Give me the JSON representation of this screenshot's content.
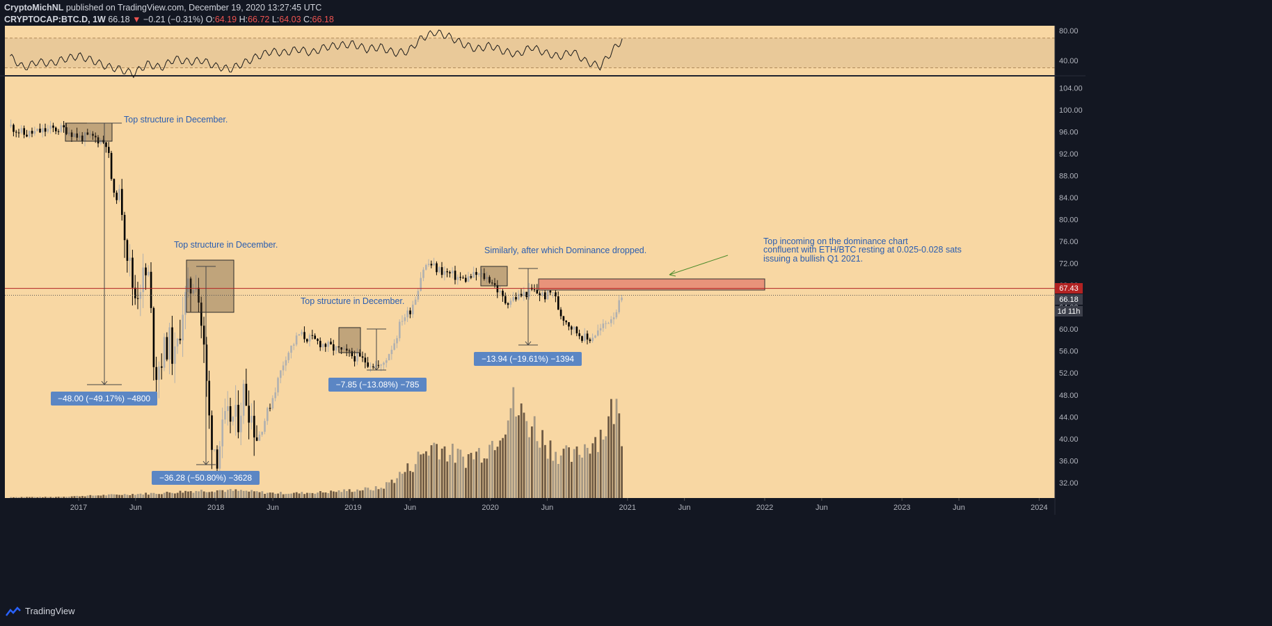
{
  "header": {
    "publisher": "CryptoMichNL",
    "published_text": "published on TradingView.com, December 19, 2020 13:27:45 UTC",
    "symbol": "CRYPTOCAP:BTC.D, 1W",
    "last": "66.18",
    "arrow": "▼",
    "change": "−0.21 (−0.31%)",
    "o_label": "O:",
    "o_val": "64.19",
    "h_label": "H:",
    "h_val": "66.72",
    "l_label": "L:",
    "l_val": "64.03",
    "c_label": "C:",
    "c_val": "66.18"
  },
  "footer": {
    "brand": "TradingView"
  },
  "colors": {
    "background": "#131722",
    "pane": "#f8d7a3",
    "bull_candle": "#b0b0b0",
    "bear_candle": "#000000",
    "resistance_line": "#b22222",
    "annotation_text": "#2a5db0",
    "measure_box": "#5b86c4",
    "sell_zone": "#e8937a"
  },
  "chart_data": {
    "type": "candlestick",
    "rsi": {
      "y_ticks": [
        "80.00",
        "40.00"
      ],
      "ylim": [
        5,
        90
      ],
      "band": [
        30,
        70
      ],
      "x": [
        2016.5,
        2016.6,
        2016.7,
        2016.8,
        2016.9,
        2017.0,
        2017.1,
        2017.2,
        2017.3,
        2017.4,
        2017.5,
        2017.6,
        2017.7,
        2017.8,
        2017.9,
        2018.0,
        2018.1,
        2018.2,
        2018.3,
        2018.4,
        2018.5,
        2018.6,
        2018.7,
        2018.8,
        2018.9,
        2019.0,
        2019.1,
        2019.2,
        2019.3,
        2019.4,
        2019.5,
        2019.6,
        2019.7,
        2019.8,
        2019.9,
        2020.0,
        2020.1,
        2020.2,
        2020.3,
        2020.4,
        2020.5,
        2020.6,
        2020.7,
        2020.8,
        2020.9,
        2020.97
      ],
      "values": [
        45,
        30,
        38,
        36,
        42,
        46,
        40,
        32,
        28,
        22,
        35,
        30,
        42,
        38,
        40,
        32,
        28,
        36,
        45,
        52,
        50,
        55,
        50,
        58,
        60,
        62,
        55,
        58,
        50,
        52,
        70,
        78,
        72,
        62,
        55,
        60,
        52,
        48,
        58,
        50,
        45,
        52,
        38,
        32,
        55,
        70
      ]
    },
    "price": {
      "y_ticks": [
        "104.00",
        "100.00",
        "96.00",
        "92.00",
        "88.00",
        "84.00",
        "80.00",
        "76.00",
        "72.00",
        "68.00",
        "64.00",
        "60.00",
        "56.00",
        "52.00",
        "48.00",
        "44.00",
        "40.00",
        "36.00",
        "32.00"
      ],
      "ylim": [
        29.5,
        107.2
      ],
      "x_ticks": [
        "2017",
        "Jun",
        "2018",
        "Jun",
        "2019",
        "Jun",
        "2020",
        "Jun",
        "2021",
        "Jun",
        "2022",
        "Jun",
        "2023",
        "Jun",
        "2024"
      ],
      "close_path": {
        "x": [
          2016.5,
          2016.6,
          2016.7,
          2016.8,
          2016.9,
          2017.0,
          2017.1,
          2017.2,
          2017.25,
          2017.3,
          2017.35,
          2017.4,
          2017.45,
          2017.5,
          2017.55,
          2017.6,
          2017.65,
          2017.7,
          2017.75,
          2017.8,
          2017.85,
          2017.9,
          2017.95,
          2018.0,
          2018.05,
          2018.1,
          2018.15,
          2018.2,
          2018.3,
          2018.4,
          2018.5,
          2018.6,
          2018.7,
          2018.8,
          2018.9,
          2019.0,
          2019.1,
          2019.2,
          2019.3,
          2019.35,
          2019.4,
          2019.45,
          2019.5,
          2019.55,
          2019.6,
          2019.7,
          2019.8,
          2019.9,
          2020.0,
          2020.1,
          2020.2,
          2020.3,
          2020.4,
          2020.45,
          2020.5,
          2020.6,
          2020.7,
          2020.8,
          2020.9,
          2020.97
        ],
        "y": [
          97,
          95.5,
          96,
          96.5,
          96.5,
          95,
          95,
          94,
          84,
          85,
          74,
          66,
          69,
          70,
          52,
          55,
          58,
          54,
          64,
          67,
          70,
          58,
          42,
          37,
          42,
          44,
          43,
          49,
          40,
          47,
          55,
          59,
          58,
          57,
          56,
          55,
          54,
          53,
          58,
          62,
          63,
          66,
          71,
          72,
          71,
          70,
          69,
          70,
          69,
          65,
          66,
          67,
          66,
          67,
          63,
          60,
          58,
          60,
          63,
          66.18
        ]
      },
      "volume": {
        "x": [
          2016.5,
          2016.8,
          2017.0,
          2017.2,
          2017.4,
          2017.6,
          2017.8,
          2018.0,
          2018.2,
          2018.4,
          2018.6,
          2018.8,
          2019.0,
          2019.2,
          2019.4,
          2019.5,
          2019.6,
          2019.7,
          2019.8,
          2019.9,
          2020.0,
          2020.1,
          2020.15,
          2020.2,
          2020.3,
          2020.4,
          2020.5,
          2020.6,
          2020.7,
          2020.8,
          2020.85,
          2020.9,
          2020.95
        ],
        "relative": [
          0.01,
          0.01,
          0.02,
          0.03,
          0.04,
          0.05,
          0.07,
          0.08,
          0.07,
          0.05,
          0.05,
          0.06,
          0.08,
          0.1,
          0.3,
          0.45,
          0.55,
          0.45,
          0.4,
          0.45,
          0.55,
          0.8,
          0.95,
          0.85,
          0.75,
          0.55,
          0.45,
          0.4,
          0.55,
          0.65,
          0.75,
          0.95,
          0.7
        ]
      }
    },
    "price_tags": [
      {
        "label": "67.43",
        "value": 67.43
      },
      {
        "label": "66.18",
        "value": 66.18
      },
      {
        "label": "1d 11h",
        "value": 64.3
      }
    ],
    "annotations": [
      {
        "text": "Top structure in December."
      },
      {
        "text": "Top structure in December."
      },
      {
        "text": "Top structure in December."
      },
      {
        "text": "Similarly, after which Dominance dropped."
      },
      {
        "text": "Top incoming on the dominance chart"
      },
      {
        "text": "confluent with ETH/BTC resting at 0.025-0.028 sats"
      },
      {
        "text": "issuing a bullish Q1 2021."
      }
    ],
    "measures": [
      {
        "text": "−48.00 (−49.17%) −4800"
      },
      {
        "text": "−36.28 (−50.80%) −3628"
      },
      {
        "text": "−7.85 (−13.08%) −785"
      },
      {
        "text": "−13.94 (−19.61%) −1394"
      }
    ]
  }
}
